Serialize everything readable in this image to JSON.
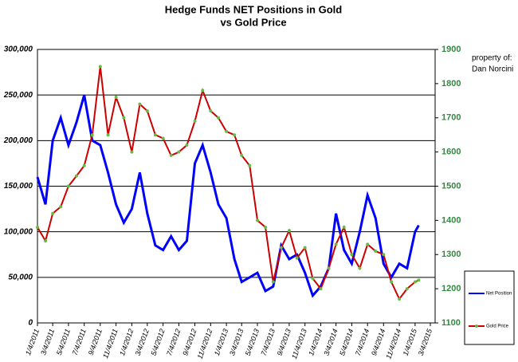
{
  "chart_data": {
    "type": "line",
    "title": "Hedge Funds NET Positions in Gold",
    "subtitle": "vs Gold Price",
    "annotation": [
      "property of:",
      "Dan Norcini"
    ],
    "grid": true,
    "legend": "lower right",
    "ylim": [
      0,
      300000
    ],
    "yticks": [
      0,
      {
        "value": 50000,
        "label": "50,000"
      },
      {
        "value": 100000,
        "label": "100,000"
      },
      {
        "value": 150000,
        "label": "150,000"
      },
      {
        "value": 200000,
        "label": "200,000"
      },
      {
        "value": 250000,
        "label": "250,000"
      },
      {
        "value": 300000,
        "label": "300,000"
      }
    ],
    "y2lim": [
      1100,
      1900
    ],
    "y2ticks": [
      1100,
      1200,
      1300,
      1400,
      1500,
      1600,
      1700,
      1800,
      1900
    ],
    "xlim": [
      "1/4/2011",
      "3/4/2015"
    ],
    "xticks": [
      "1/4/2011",
      "3/4/2011",
      "5/4/2011",
      "7/4/2011",
      "9/4/2011",
      "11/4/2011",
      "1/4/2012",
      "3/4/2012",
      "5/4/2012",
      "7/4/2012",
      "9/4/2012",
      "11/4/2012",
      "1/4/2013",
      "3/4/2013",
      "5/4/2013",
      "7/4/2013",
      "9/4/2013",
      "11/4/2013",
      "1/4/2014",
      "3/4/2014",
      "5/4/2014",
      "7/4/2014",
      "9/4/2014",
      "11/4/2014",
      "1/4/2015",
      "3/4/2015"
    ],
    "x": [
      "1/4/2011",
      "2/4/2011",
      "3/4/2011",
      "4/4/2011",
      "5/4/2011",
      "6/4/2011",
      "7/4/2011",
      "8/4/2011",
      "9/4/2011",
      "10/4/2011",
      "11/4/2011",
      "12/4/2011",
      "1/4/2012",
      "2/4/2012",
      "3/4/2012",
      "4/4/2012",
      "5/4/2012",
      "6/4/2012",
      "7/4/2012",
      "8/4/2012",
      "9/4/2012",
      "10/4/2012",
      "11/4/2012",
      "12/4/2012",
      "1/4/2013",
      "2/4/2013",
      "3/4/2013",
      "4/4/2013",
      "5/4/2013",
      "6/4/2013",
      "7/4/2013",
      "8/4/2013",
      "9/4/2013",
      "10/4/2013",
      "11/4/2013",
      "12/4/2013",
      "1/4/2014",
      "2/4/2014",
      "3/4/2014",
      "4/4/2014",
      "5/4/2014",
      "6/4/2014",
      "7/4/2014",
      "8/4/2014",
      "9/4/2014",
      "10/4/2014",
      "11/4/2014",
      "12/4/2014",
      "1/4/2015",
      "1/18/2015"
    ],
    "series": [
      {
        "name": "Net Position",
        "color": "#0000ff",
        "axis": "y",
        "values": [
          160000,
          130000,
          200000,
          225000,
          195000,
          220000,
          250000,
          200000,
          195000,
          165000,
          130000,
          110000,
          125000,
          165000,
          120000,
          85000,
          80000,
          95000,
          80000,
          90000,
          175000,
          195000,
          165000,
          130000,
          115000,
          70000,
          45000,
          50000,
          55000,
          35000,
          40000,
          85000,
          70000,
          75000,
          55000,
          30000,
          40000,
          60000,
          120000,
          80000,
          65000,
          100000,
          140000,
          115000,
          65000,
          50000,
          65000,
          60000,
          100000,
          107000
        ]
      },
      {
        "name": "Gold Price",
        "color": "#cc0000",
        "marker_color": "#66bb44",
        "axis": "y2",
        "values": [
          1380,
          1340,
          1420,
          1440,
          1500,
          1530,
          1560,
          1650,
          1850,
          1650,
          1760,
          1700,
          1600,
          1740,
          1720,
          1650,
          1640,
          1590,
          1600,
          1620,
          1690,
          1780,
          1720,
          1700,
          1660,
          1650,
          1590,
          1560,
          1400,
          1380,
          1220,
          1320,
          1370,
          1290,
          1320,
          1230,
          1200,
          1260,
          1330,
          1380,
          1300,
          1260,
          1330,
          1310,
          1300,
          1220,
          1170,
          1200,
          1220,
          1225
        ]
      }
    ]
  }
}
